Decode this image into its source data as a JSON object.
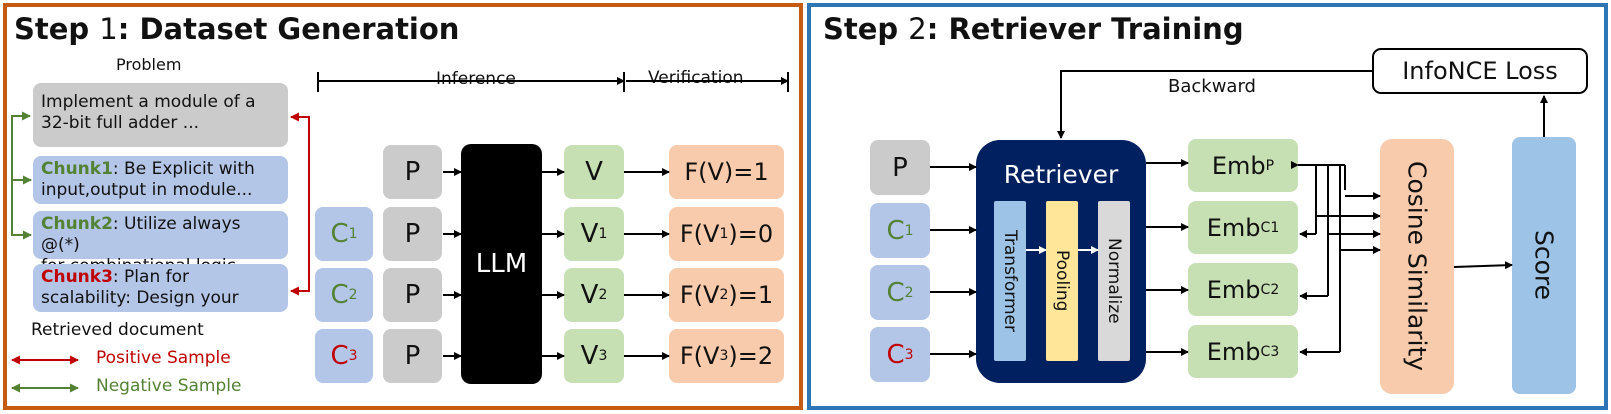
{
  "step1": {
    "title_step": "Step",
    "title_num": "1",
    "title_rest": ": Dataset Generation",
    "problem_label": "Problem",
    "problem_text_line1": "Implement a module of a",
    "problem_text_line2": "32-bit full adder ...",
    "chunks": [
      {
        "name": "Chunk1",
        "line1": ": Be Explicit with",
        "line2": "input,output in module..."
      },
      {
        "name": "Chunk2",
        "line1": ": Utilize always @(*)",
        "line2": "for combinational logic.."
      },
      {
        "name": "Chunk3",
        "line1": ": Plan for",
        "line2": "scalability: Design your"
      }
    ],
    "retrieved_label": "Retrieved document",
    "legend_positive": "Positive Sample",
    "legend_negative": "Negative Sample",
    "inference_label": "Inference",
    "verification_label": "Verification",
    "c_letter": "C",
    "c_subs": [
      "1",
      "2",
      "3"
    ],
    "p_label": "P",
    "llm_label": "LLM",
    "v_letter": "V",
    "v_subs": [
      "",
      "1",
      "2",
      "3"
    ],
    "f_prefix": "F(",
    "f_suffix": ")=",
    "f_values": [
      "1",
      "0",
      "1",
      "2"
    ]
  },
  "step2": {
    "title_step": "Step",
    "title_num": "2",
    "title_rest": ": Retriever Training",
    "infonce_label": "InfoNCE Loss",
    "backward_label": "Backward",
    "retriever_label": "Retriever",
    "transformer_label": "Transformer",
    "pooling_label": "Pooling",
    "normalize_label": "Normalize",
    "p_label": "P",
    "c_letter": "C",
    "c_subs": [
      "1",
      "2",
      "3"
    ],
    "emb_label": "Emb",
    "emb_subs": [
      "P",
      "C1",
      "C2",
      "C3"
    ],
    "cosine_label": "Cosine Similarity",
    "score_label": "Score"
  },
  "colors": {
    "panel1_border": "#c55a11",
    "panel2_border": "#2e75b6",
    "positive": "#c00000",
    "negative": "#548235",
    "retriever_bg": "#002060"
  }
}
